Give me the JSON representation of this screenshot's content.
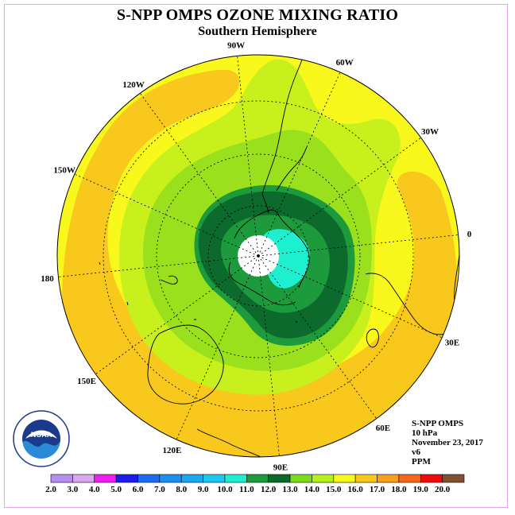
{
  "title": "S-NPP OMPS OZONE MIXING RATIO",
  "subtitle": "Southern Hemisphere",
  "longitude_labels": [
    "90W",
    "60W",
    "30W",
    "0",
    "30E",
    "60E",
    "90E",
    "120E",
    "150E",
    "180",
    "150W",
    "120W"
  ],
  "info": {
    "instrument": "S-NPP OMPS",
    "level": "10 hPa",
    "date": "November 23, 2017",
    "version": "v6",
    "units": "PPM"
  },
  "logo": {
    "text": "NOAA",
    "ring_text": "NATIONAL OCEANIC AND ATMOSPHERIC ADMINISTRATION",
    "ring_text_bottom": "U.S. DEPARTMENT OF COMMERCE"
  },
  "colorbar": {
    "labels": [
      "2.0",
      "3.0",
      "4.0",
      "5.0",
      "6.0",
      "7.0",
      "8.0",
      "9.0",
      "10.0",
      "11.0",
      "12.0",
      "13.0",
      "14.0",
      "15.0",
      "16.0",
      "17.0",
      "18.0",
      "19.0",
      "20.0"
    ],
    "colors": [
      "#b68ef0",
      "#d9a8f0",
      "#f01cf0",
      "#1c1cf0",
      "#1c6cf0",
      "#1c90f0",
      "#1ca8f0",
      "#1cc8f0",
      "#1cf0d0",
      "#1c9a3c",
      "#0c6a2c",
      "#7cdc1c",
      "#b4f01c",
      "#f8f81c",
      "#f8c81c",
      "#f8a01c",
      "#f8681c",
      "#f00c0c",
      "#805030"
    ]
  },
  "colors": {
    "yellow_15_16": "#f8f81c",
    "orange_16_17": "#f8c81c",
    "lightgreen_14_15": "#c8f01c",
    "green_13_14": "#9ae01c",
    "medgreen_11_12": "#1c9a3c",
    "darkgreen_12_13": "#0c6a2c",
    "cyan_10_11": "#1cf0d0",
    "polar_night": "#ffffff"
  }
}
